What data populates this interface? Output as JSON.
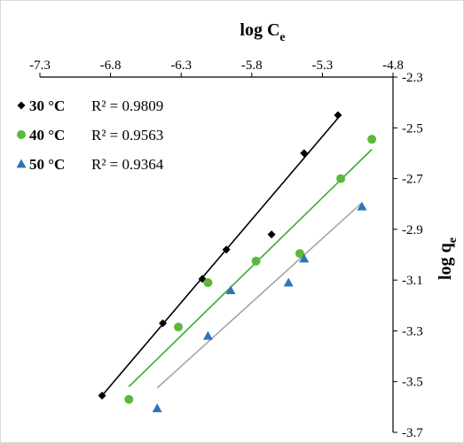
{
  "chart_data": {
    "type": "scatter",
    "title": "",
    "xlabel_main": "log C",
    "xlabel_sub": "e",
    "ylabel_main": "log q",
    "ylabel_sub": "e",
    "xlim": [
      -7.3,
      -4.8
    ],
    "ylim": [
      -3.7,
      -2.3
    ],
    "x_ticks": [
      "-7.3",
      "-6.8",
      "-6.3",
      "-5.8",
      "-5.3",
      "-4.8"
    ],
    "y_ticks": [
      "-2.3",
      "-2.5",
      "-2.7",
      "-2.9",
      "-3.1",
      "-3.3",
      "-3.5",
      "-3.7"
    ],
    "x_axis_position": "top",
    "y_axis_position": "right",
    "grid": false,
    "legend_position": "top-left",
    "series": [
      {
        "name": "30 °C",
        "r2": "R² = 0.9809",
        "marker": "diamond",
        "color": "#000000",
        "trend_color": "#000000",
        "x": [
          -6.86,
          -6.43,
          -6.15,
          -5.98,
          -5.66,
          -5.43,
          -5.19
        ],
        "y": [
          -3.555,
          -3.27,
          -3.095,
          -2.98,
          -2.92,
          -2.6,
          -2.45
        ],
        "trend_x": [
          -6.86,
          -5.19
        ],
        "trend_y": [
          -3.555,
          -2.462
        ]
      },
      {
        "name": "40 °C",
        "r2": "R² = 0.9563",
        "marker": "circle",
        "color": "#5cb83c",
        "trend_color": "#3aaa35",
        "x": [
          -6.67,
          -6.32,
          -6.11,
          -5.77,
          -5.46,
          -5.17,
          -4.95
        ],
        "y": [
          -3.57,
          -3.285,
          -3.11,
          -3.025,
          -2.995,
          -2.7,
          -2.545
        ],
        "trend_x": [
          -6.67,
          -4.95
        ],
        "trend_y": [
          -3.52,
          -2.585
        ]
      },
      {
        "name": "50 °C",
        "r2": "R² = 0.9364",
        "marker": "triangle",
        "color": "#2e75b6",
        "trend_color": "#a6a6a6",
        "x": [
          -6.47,
          -6.11,
          -5.95,
          -5.54,
          -5.43,
          -5.02
        ],
        "y": [
          -3.605,
          -3.32,
          -3.14,
          -3.11,
          -3.015,
          -2.81
        ],
        "trend_x": [
          -6.47,
          -5.02
        ],
        "trend_y": [
          -3.525,
          -2.795
        ]
      }
    ]
  }
}
